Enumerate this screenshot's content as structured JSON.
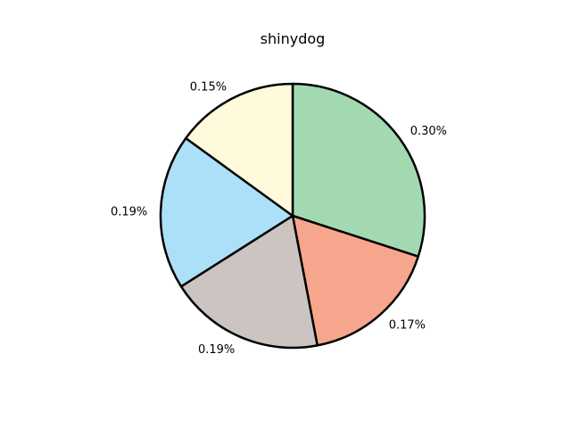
{
  "chart_data": {
    "type": "pie",
    "title": "shinydog",
    "start_angle_deg": 90,
    "direction": "clockwise",
    "slices": [
      {
        "label": "0.30%",
        "value": 0.3,
        "color": "#a3d9b1",
        "pattern_color": "#00140a",
        "pattern": "tree"
      },
      {
        "label": "0.17%",
        "value": 0.17,
        "color": "#f6a68c",
        "pattern_color": "#200004",
        "pattern": "waves"
      },
      {
        "label": "0.19%",
        "value": 0.19,
        "color": "#cbc4c1",
        "pattern_color": "#130e0f",
        "pattern": "drips"
      },
      {
        "label": "0.19%",
        "value": 0.19,
        "color": "#ace0f9",
        "pattern_color": "#061b26",
        "pattern": "blob"
      },
      {
        "label": "0.15%",
        "value": 0.15,
        "color": "#fffadb",
        "pattern_color": "#221e18",
        "pattern": "spots"
      }
    ]
  }
}
